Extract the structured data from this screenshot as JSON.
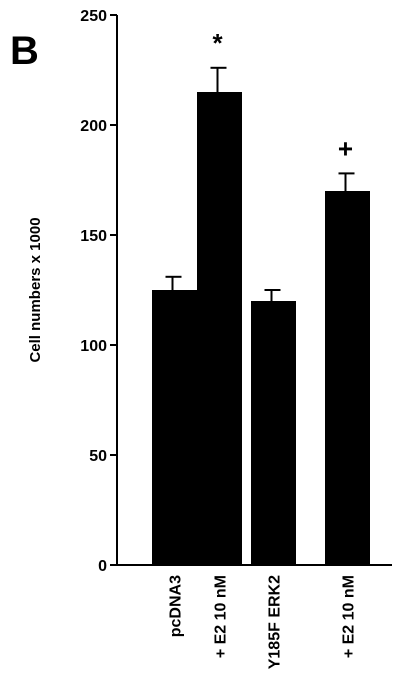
{
  "panel_label": "B",
  "chart_data": {
    "type": "bar",
    "title": "",
    "xlabel": "",
    "ylabel": "Cell numbers x 1000",
    "ylim": [
      0,
      250
    ],
    "yticks": [
      0,
      50,
      100,
      150,
      200,
      250
    ],
    "grid": false,
    "categories": [
      "pcDNA3",
      "+ E2 10 nM",
      "Y185F ERK2",
      "+ E2 10 nM"
    ],
    "values": [
      125,
      215,
      120,
      170
    ],
    "errors": [
      6,
      11,
      5,
      8
    ],
    "annotations": [
      "",
      "*",
      "",
      "+"
    ],
    "bar_color": "#000000"
  }
}
